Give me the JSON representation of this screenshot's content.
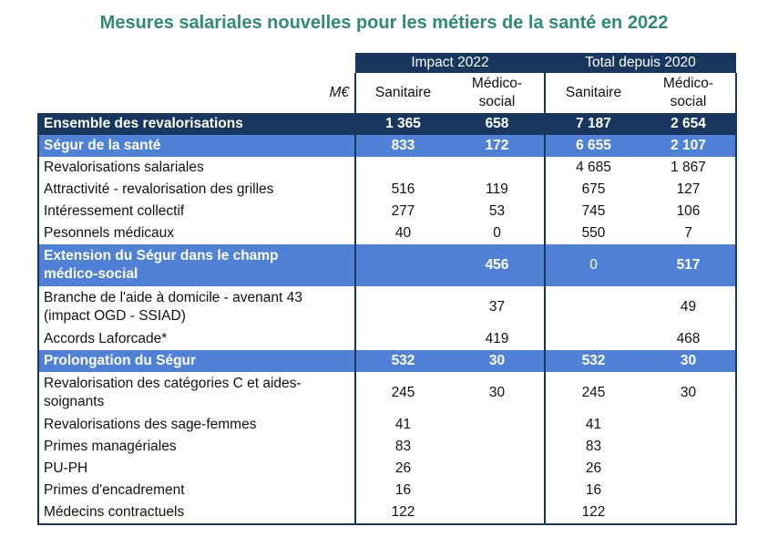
{
  "title": "Mesures salariales nouvelles pour les métiers de la santé en 2022",
  "header": {
    "group1": "Impact 2022",
    "group2": "Total depuis 2020",
    "unit": "M€",
    "col_sanitaire": "Sanitaire",
    "col_medico_line1": "Médico-",
    "col_medico_line2": "social"
  },
  "rows": [
    {
      "label": "Ensemble des revalorisations",
      "v": [
        "1 365",
        "658",
        "7 187",
        "2 654"
      ]
    },
    {
      "label": "Ségur de la santé",
      "v": [
        "833",
        "172",
        "6 655",
        "2 107"
      ]
    },
    {
      "label": "Revalorisations salariales",
      "v": [
        "",
        "",
        "4 685",
        "1 867"
      ]
    },
    {
      "label": "Attractivité - revalorisation des grilles",
      "v": [
        "516",
        "119",
        "675",
        "127"
      ]
    },
    {
      "label": "Intéressement collectif",
      "v": [
        "277",
        "53",
        "745",
        "106"
      ]
    },
    {
      "label": "Pesonnels médicaux",
      "v": [
        "40",
        "0",
        "550",
        "7"
      ]
    },
    {
      "label_line1": "Extension du Ségur dans le champ",
      "label_line2": "médico-social",
      "v": [
        "",
        "456",
        "0",
        "517"
      ]
    },
    {
      "label_line1": "Branche de l'aide à domicile - avenant 43",
      "label_line2": "(impact OGD - SSIAD)",
      "v": [
        "",
        "37",
        "",
        "49"
      ]
    },
    {
      "label": "Accords Laforcade*",
      "v": [
        "",
        "419",
        "",
        "468"
      ]
    },
    {
      "label": "Prolongation du Ségur",
      "v": [
        "532",
        "30",
        "532",
        "30"
      ]
    },
    {
      "label_line1": "Revalorisation des catégories C et aides-",
      "label_line2": "soignants",
      "v": [
        "245",
        "30",
        "245",
        "30"
      ]
    },
    {
      "label": "Revalorisations des sage-femmes",
      "v": [
        "41",
        "",
        "41",
        ""
      ]
    },
    {
      "label": "Primes managériales",
      "v": [
        "83",
        "",
        "83",
        ""
      ]
    },
    {
      "label": "PU-PH",
      "v": [
        "26",
        "",
        "26",
        ""
      ]
    },
    {
      "label": "Primes d'encadrement",
      "v": [
        "16",
        "",
        "16",
        ""
      ]
    },
    {
      "label": "Médecins contractuels",
      "v": [
        "122",
        "",
        "122",
        ""
      ]
    }
  ],
  "colors": {
    "dark_header": "#17375e",
    "section_blue": "#4f81d6",
    "title_green": "#2e8b74"
  }
}
